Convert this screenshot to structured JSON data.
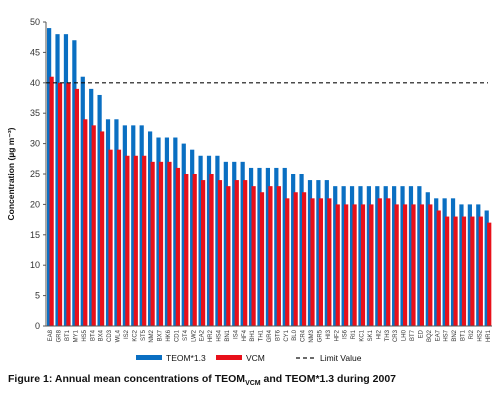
{
  "chart_data": {
    "type": "bar",
    "ylabel": "Concentration (µg m⁻³)",
    "ylim": [
      0,
      50
    ],
    "yticks": [
      0,
      5,
      10,
      15,
      20,
      25,
      30,
      35,
      40,
      45,
      50
    ],
    "limit_value": 40,
    "grid": false,
    "legend_position": "bottom",
    "categories": [
      "EA8",
      "GR8",
      "BT1",
      "MY1",
      "HS5",
      "BT4",
      "BX4",
      "CD3",
      "WL4",
      "IS2",
      "KC2",
      "ST5",
      "NM2",
      "BX7",
      "HK6",
      "CD1",
      "ST4",
      "LW2",
      "EA2",
      "HR2",
      "HS4",
      "BN1",
      "IS4",
      "HF4",
      "BH1",
      "TH1",
      "GR4",
      "BT6",
      "CY1",
      "BL0",
      "CR4",
      "NM3",
      "GR5",
      "HI3",
      "HF2",
      "IS6",
      "RI1",
      "KC1",
      "SK1",
      "HI2",
      "TH3",
      "CR3",
      "LH0",
      "BT7",
      "ED",
      "BQ2",
      "EA7",
      "HS7",
      "BN2",
      "BT1",
      "RI2",
      "HS2",
      "HR1"
    ],
    "series": [
      {
        "name": "TEOM*1.3",
        "color": "#0a6fc2",
        "values": [
          49,
          48,
          48,
          47,
          41,
          39,
          38,
          34,
          34,
          33,
          33,
          33,
          32,
          31,
          31,
          31,
          30,
          29,
          28,
          28,
          28,
          27,
          27,
          27,
          26,
          26,
          26,
          26,
          26,
          25,
          25,
          24,
          24,
          24,
          23,
          23,
          23,
          23,
          23,
          23,
          23,
          23,
          23,
          23,
          23,
          22,
          21,
          21,
          21,
          20,
          20,
          20,
          19
        ]
      },
      {
        "name": "VCM",
        "color": "#e8101a",
        "values": [
          41,
          40,
          40,
          39,
          34,
          33,
          32,
          29,
          29,
          28,
          28,
          28,
          27,
          27,
          27,
          26,
          25,
          25,
          24,
          25,
          24,
          23,
          24,
          24,
          23,
          22,
          23,
          23,
          21,
          22,
          22,
          21,
          21,
          21,
          20,
          20,
          20,
          20,
          20,
          21,
          21,
          20,
          20,
          20,
          20,
          20,
          19,
          18,
          18,
          18,
          18,
          18,
          17
        ]
      }
    ],
    "legend": {
      "limit_label": "Limit Value"
    }
  },
  "caption": {
    "prefix": "Figure 1: Annual mean concentrations of TEOM",
    "sub": "VCM",
    "suffix": " and TEOM*1.3 during 2007"
  },
  "colors": {
    "limit_line": "#111111",
    "axis": "#555555"
  }
}
